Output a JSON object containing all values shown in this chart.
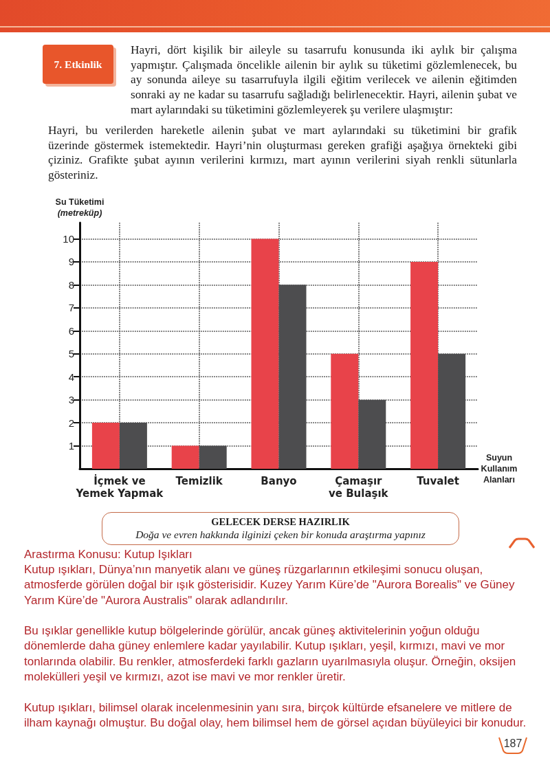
{
  "chart_data": {
    "type": "bar",
    "title": "7. Etkinlik",
    "categories": [
      "İçmek ve\nYemek Yapmak",
      "Temizlik",
      "Banyo",
      "Çamaşır\nve Bulaşık",
      "Tuvalet"
    ],
    "series": [
      {
        "color": "#e8434a",
        "values": [
          2,
          1,
          10,
          5,
          9
        ]
      },
      {
        "color": "#4d4d4f",
        "values": [
          2,
          1,
          8,
          3,
          5
        ]
      }
    ],
    "xlabel": "Suyun\nKullanım\nAlanları",
    "ylabel": "Su Tüketimi\n(metreküp)",
    "ylim": [
      0,
      10.7
    ],
    "yticks": [
      1,
      2,
      3,
      4,
      5,
      6,
      7,
      8,
      9,
      10
    ],
    "grid": true,
    "annotations": [
      "Hayri, dört kişilik bir aileyle su tasarrufu konusunda iki aylık bir çalışma yapmıştır. Çalışmada öncelikle ailenin bir aylık su tüketimi gözlemlenecek, bu ay sonunda aileye su tasarrufuyla ilgili eğitim verilecek ve ailenin eğitimden sonraki ay ne kadar su tasarrufu sağladığı belirlenecektir. Hayri, ailenin şubat ve mart aylarındaki su tüketimini gözlemleyerek şu verilere ulaşmıştır:",
      "Hayri, bu verilerden hareketle ailenin şubat ve mart aylarındaki su tüketimini bir grafik üzerinde göstermek istemektedir. Hayri’nin oluşturması gereken grafiği aşağıya örnekteki gibi çiziniz. Grafikte şubat ayının verilerini kırmızı, mart ayının verilerini siyah renkli sütunlarla gösteriniz.",
      "GELECEK DERSE HAZIRLIK",
      "Doğa ve evren hakkında ilginizi çeken bir konuda araştırma yapınız",
      "Arastırma Konusu: Kutup Işıkları",
      "Kutup ışıkları, Dünya’nın manyetik alanı ve güneş rüzgarlarının etkileşimi sonucu oluşan, atmosferde görülen doğal bir ışık gösterisidir. Kuzey Yarım Küre’de \"Aurora Borealis\" ve Güney Yarım Küre’de \"Aurora Australis\" olarak adlandırılır.",
      "Bu ışıklar genellikle kutup bölgelerinde görülür, ancak güneş aktivitelerinin yoğun olduğu dönemlerde daha güney enlemlere kadar yayılabilir. Kutup ışıkları, yeşil, kırmızı, mavi ve mor tonlarında olabilir. Bu renkler, atmosferdeki farklı gazların uyarılmasıyla oluşur. Örneğin, oksijen molekülleri yeşil ve kırmızı, azot ise mavi ve mor renkler üretir.",
      "Kutup ışıkları, bilimsel olarak incelenmesinin yanı sıra, birçok kültürde efsanelere ve mitlere de ilham kaynağı olmuştur. Bu doğal olay, hem bilimsel hem de görsel açıdan büyüleyici bir konudur.",
      "187"
    ]
  }
}
